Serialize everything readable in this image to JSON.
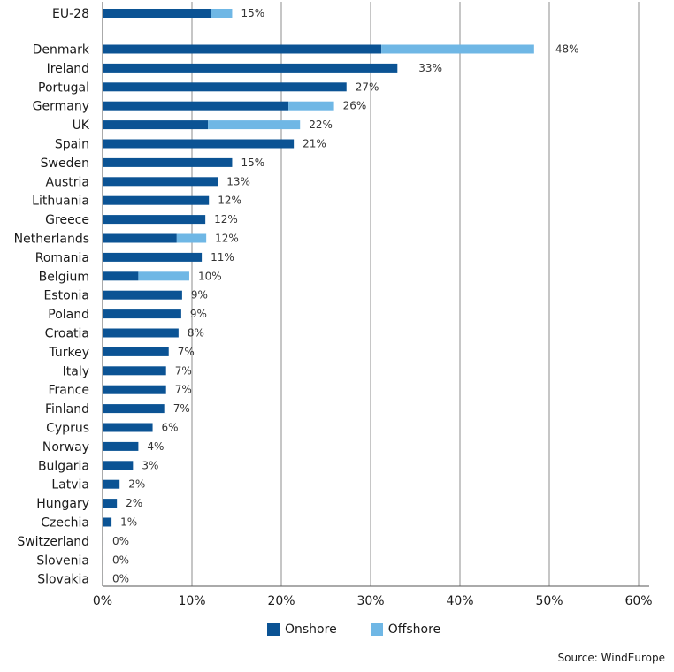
{
  "chart_data": {
    "type": "bar",
    "orientation": "horizontal",
    "stacked": true,
    "categories": [
      "EU-28",
      "Denmark",
      "Ireland",
      "Portugal",
      "Germany",
      "UK",
      "Spain",
      "Sweden",
      "Austria",
      "Lithuania",
      "Greece",
      "Netherlands",
      "Romania",
      "Belgium",
      "Estonia",
      "Poland",
      "Croatia",
      "Turkey",
      "Italy",
      "France",
      "Finland",
      "Cyprus",
      "Norway",
      "Bulgaria",
      "Latvia",
      "Hungary",
      "Czechia",
      "Switzerland",
      "Slovenia",
      "Slovakia"
    ],
    "series": [
      {
        "name": "Onshore",
        "color": "#0b5394",
        "values": [
          12.1,
          31.2,
          33.0,
          27.3,
          20.8,
          11.8,
          21.4,
          14.5,
          12.9,
          11.9,
          11.5,
          8.3,
          11.1,
          4.0,
          8.9,
          8.8,
          8.5,
          7.4,
          7.1,
          7.1,
          6.9,
          5.6,
          4.0,
          3.4,
          1.9,
          1.6,
          1.0,
          0.1,
          0.1,
          0.1
        ]
      },
      {
        "name": "Offshore",
        "color": "#6fb7e5",
        "values": [
          2.4,
          17.1,
          0.0,
          0.0,
          5.1,
          10.3,
          0.0,
          0.0,
          0.0,
          0.0,
          0.0,
          3.3,
          0.0,
          5.7,
          0.0,
          0.0,
          0.0,
          0.0,
          0.0,
          0.0,
          0.0,
          0.0,
          0.0,
          0.0,
          0.0,
          0.0,
          0.0,
          0.0,
          0.0,
          0.0
        ]
      }
    ],
    "totals_labels": [
      "15%",
      "48%",
      "33%",
      "27%",
      "26%",
      "22%",
      "21%",
      "15%",
      "13%",
      "12%",
      "12%",
      "12%",
      "11%",
      "10%",
      "9%",
      "9%",
      "8%",
      "7%",
      "7%",
      "7%",
      "7%",
      "6%",
      "4%",
      "3%",
      "2%",
      "2%",
      "1%",
      "0%",
      "0%",
      "0%"
    ],
    "xlim": [
      0,
      60
    ],
    "xticks": [
      0,
      10,
      20,
      30,
      40,
      50,
      60
    ],
    "xtick_labels": [
      "0%",
      "10%",
      "20%",
      "30%",
      "40%",
      "50%",
      "60%"
    ],
    "grid": "vertical",
    "legend_position": "bottom-center"
  },
  "legend": {
    "onshore": "Onshore",
    "offshore": "Offshore"
  },
  "source": "Source: WindEurope"
}
